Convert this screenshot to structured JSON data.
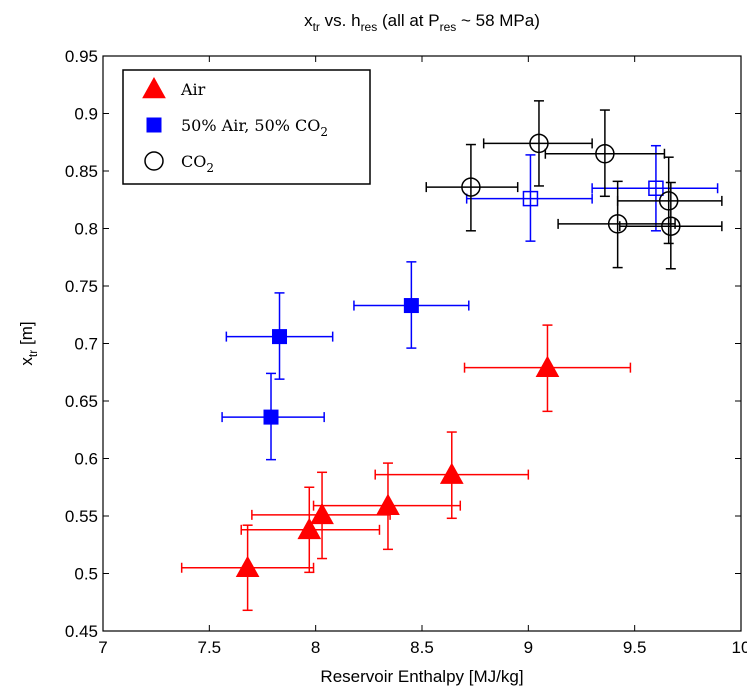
{
  "chart_data": {
    "type": "scatter",
    "title_parts": [
      {
        "t": "x",
        "sub": false
      },
      {
        "t": "tr",
        "sub": true
      },
      {
        "t": " vs. h",
        "sub": false
      },
      {
        "t": "res",
        "sub": true
      },
      {
        "t": " (all at P",
        "sub": false
      },
      {
        "t": "res",
        "sub": true
      },
      {
        "t": " ~ 58 MPa)",
        "sub": false
      }
    ],
    "xlabel": "Reservoir Enthalpy [MJ/kg]",
    "ylabel_parts": [
      {
        "t": "x",
        "sub": false
      },
      {
        "t": "tr",
        "sub": true
      },
      {
        "t": " [m]",
        "sub": false
      }
    ],
    "xlim": [
      7,
      10
    ],
    "ylim": [
      0.45,
      0.95
    ],
    "xticks": [
      7,
      7.5,
      8,
      8.5,
      9,
      9.5,
      10
    ],
    "xtick_labels": [
      "7",
      "7.5",
      "8",
      "8.5",
      "9",
      "9.5",
      "10"
    ],
    "yticks": [
      0.45,
      0.5,
      0.55,
      0.6,
      0.65,
      0.7,
      0.75,
      0.8,
      0.85,
      0.9,
      0.95
    ],
    "ytick_labels": [
      "0.45",
      "0.5",
      "0.55",
      "0.6",
      "0.65",
      "0.7",
      "0.75",
      "0.8",
      "0.85",
      "0.9",
      "0.95"
    ],
    "grid": false,
    "legend_position": "top-left",
    "series": [
      {
        "name_parts": [
          {
            "t": "Air",
            "sub": false
          }
        ],
        "marker": "triangle-filled",
        "color": "#ff0000",
        "points": [
          {
            "x": 7.68,
            "y": 0.505,
            "xerr": [
              7.37,
              7.99
            ],
            "yerr": [
              0.468,
              0.542
            ]
          },
          {
            "x": 7.97,
            "y": 0.538,
            "xerr": [
              7.65,
              8.3
            ],
            "yerr": [
              0.501,
              0.575
            ]
          },
          {
            "x": 8.03,
            "y": 0.551,
            "xerr": [
              7.7,
              8.35
            ],
            "yerr": [
              0.513,
              0.588
            ]
          },
          {
            "x": 8.34,
            "y": 0.559,
            "xerr": [
              7.99,
              8.68
            ],
            "yerr": [
              0.521,
              0.596
            ]
          },
          {
            "x": 8.64,
            "y": 0.586,
            "xerr": [
              8.28,
              9.0
            ],
            "yerr": [
              0.548,
              0.623
            ]
          },
          {
            "x": 9.09,
            "y": 0.679,
            "xerr": [
              8.7,
              9.48
            ],
            "yerr": [
              0.641,
              0.716
            ]
          }
        ]
      },
      {
        "name_parts": [
          {
            "t": "50% Air, 50% CO",
            "sub": false
          },
          {
            "t": "2",
            "sub": true
          }
        ],
        "marker": "square-filled",
        "color": "#0000ff",
        "points": [
          {
            "x": 7.79,
            "y": 0.636,
            "xerr": [
              7.56,
              8.04
            ],
            "yerr": [
              0.599,
              0.674
            ]
          },
          {
            "x": 7.83,
            "y": 0.706,
            "xerr": [
              7.58,
              8.08
            ],
            "yerr": [
              0.669,
              0.744
            ]
          },
          {
            "x": 8.45,
            "y": 0.733,
            "xerr": [
              8.18,
              8.72
            ],
            "yerr": [
              0.696,
              0.771
            ]
          }
        ]
      },
      {
        "name_parts": [
          {
            "t": "",
            "sub": false
          }
        ],
        "marker": "square-open",
        "color": "#0000ff",
        "points": [
          {
            "x": 9.01,
            "y": 0.826,
            "xerr": [
              8.71,
              9.3
            ],
            "yerr": [
              0.789,
              0.864
            ]
          },
          {
            "x": 9.6,
            "y": 0.835,
            "xerr": [
              9.3,
              9.89
            ],
            "yerr": [
              0.798,
              0.872
            ]
          }
        ]
      },
      {
        "name_parts": [
          {
            "t": "CO",
            "sub": false
          },
          {
            "t": "2",
            "sub": true
          }
        ],
        "marker": "circle-open",
        "color": "#000000",
        "points": [
          {
            "x": 8.73,
            "y": 0.836,
            "xerr": [
              8.52,
              8.95
            ],
            "yerr": [
              0.798,
              0.873
            ]
          },
          {
            "x": 9.05,
            "y": 0.874,
            "xerr": [
              8.79,
              9.3
            ],
            "yerr": [
              0.837,
              0.911
            ]
          },
          {
            "x": 9.36,
            "y": 0.865,
            "xerr": [
              9.08,
              9.64
            ],
            "yerr": [
              0.828,
              0.903
            ]
          },
          {
            "x": 9.42,
            "y": 0.804,
            "xerr": [
              9.14,
              9.69
            ],
            "yerr": [
              0.766,
              0.841
            ]
          },
          {
            "x": 9.66,
            "y": 0.824,
            "xerr": [
              9.42,
              9.91
            ],
            "yerr": [
              0.787,
              0.862
            ]
          },
          {
            "x": 9.67,
            "y": 0.802,
            "xerr": [
              9.43,
              9.91
            ],
            "yerr": [
              0.765,
              0.84
            ]
          }
        ]
      }
    ]
  }
}
